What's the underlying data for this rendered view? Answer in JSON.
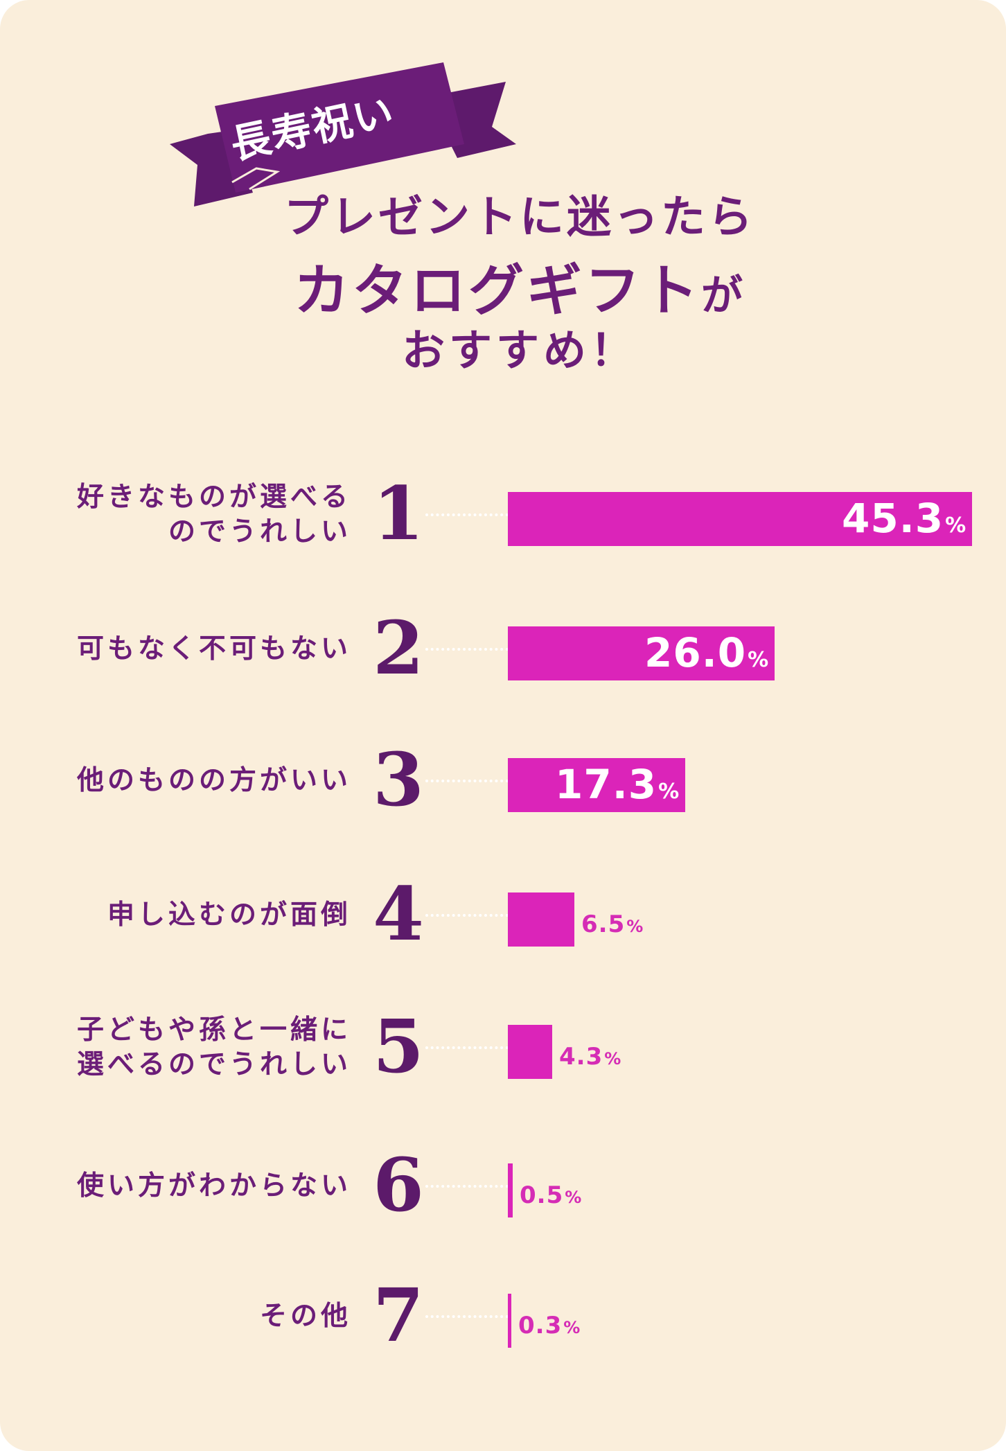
{
  "badge": "長寿祝い",
  "headline": {
    "line1": "プレゼントに迷ったら",
    "line2_main": "カタログギフト",
    "line2_small": "が",
    "line3": "おすすめ！"
  },
  "colors": {
    "background": "#faeedb",
    "bar": "#db24b9",
    "ribbon": "#6b1d78",
    "text": "#6b1d78"
  },
  "chart_data": {
    "type": "bar",
    "orientation": "horizontal",
    "unit": "%",
    "xlim": [
      0,
      45.3
    ],
    "items": [
      {
        "rank": "1",
        "label_lines": [
          "好きなものが選べる",
          "のでうれしい"
        ],
        "value": 45.3,
        "value_label": "45.3"
      },
      {
        "rank": "2",
        "label_lines": [
          "可もなく不可もない"
        ],
        "value": 26.0,
        "value_label": "26.0"
      },
      {
        "rank": "3",
        "label_lines": [
          "他のものの方がいい"
        ],
        "value": 17.3,
        "value_label": "17.3"
      },
      {
        "rank": "4",
        "label_lines": [
          "申し込むのが面倒"
        ],
        "value": 6.5,
        "value_label": "6.5"
      },
      {
        "rank": "5",
        "label_lines": [
          "子どもや孫と一緒に",
          "選べるのでうれしい"
        ],
        "value": 4.3,
        "value_label": "4.3"
      },
      {
        "rank": "6",
        "label_lines": [
          "使い方がわからない"
        ],
        "value": 0.5,
        "value_label": "0.5"
      },
      {
        "rank": "7",
        "label_lines": [
          "その他"
        ],
        "value": 0.3,
        "value_label": "0.3"
      }
    ]
  }
}
